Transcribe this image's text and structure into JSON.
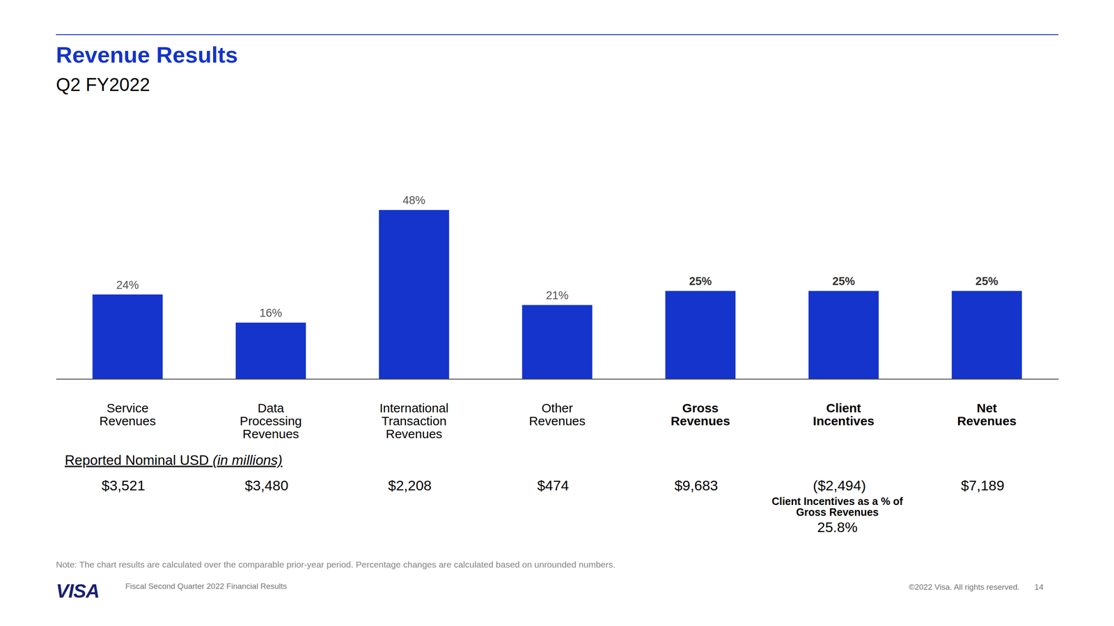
{
  "chart_data": {
    "type": "bar",
    "title": "Revenue Results",
    "subtitle": "Q2 FY2022",
    "categories": [
      "Service Revenues",
      "Data Processing Revenues",
      "International Transaction Revenues",
      "Other Revenues",
      "Gross Revenues",
      "Client Incentives",
      "Net Revenues"
    ],
    "values": [
      24,
      16,
      48,
      21,
      25,
      25,
      25
    ],
    "value_labels": [
      "24%",
      "16%",
      "48%",
      "21%",
      "25%",
      "25%",
      "25%"
    ],
    "data_labels": true,
    "color": "#1434cb",
    "ylim": [
      0,
      60
    ],
    "tick_labels": "x",
    "grid": false,
    "amounts_title": "Reported Nominal USD",
    "amounts_unit": "(in millions)",
    "amounts": [
      "$3,521",
      "$3,480",
      "$2,208",
      "$474",
      "$9,683",
      "($2,494)",
      "$7,189"
    ],
    "incentive_note": "Client Incentives as a % of Gross Revenues",
    "incentive_value": "25.8%",
    "note": "Note: The chart results are calculated over the comparable prior-year period. Percentage changes are calculated based on unrounded numbers.",
    "logo": "VISA",
    "footer": "Fiscal Second Quarter 2022 Financial Results",
    "copyright": "©2022 Visa. All rights reserved.",
    "page": "14"
  }
}
